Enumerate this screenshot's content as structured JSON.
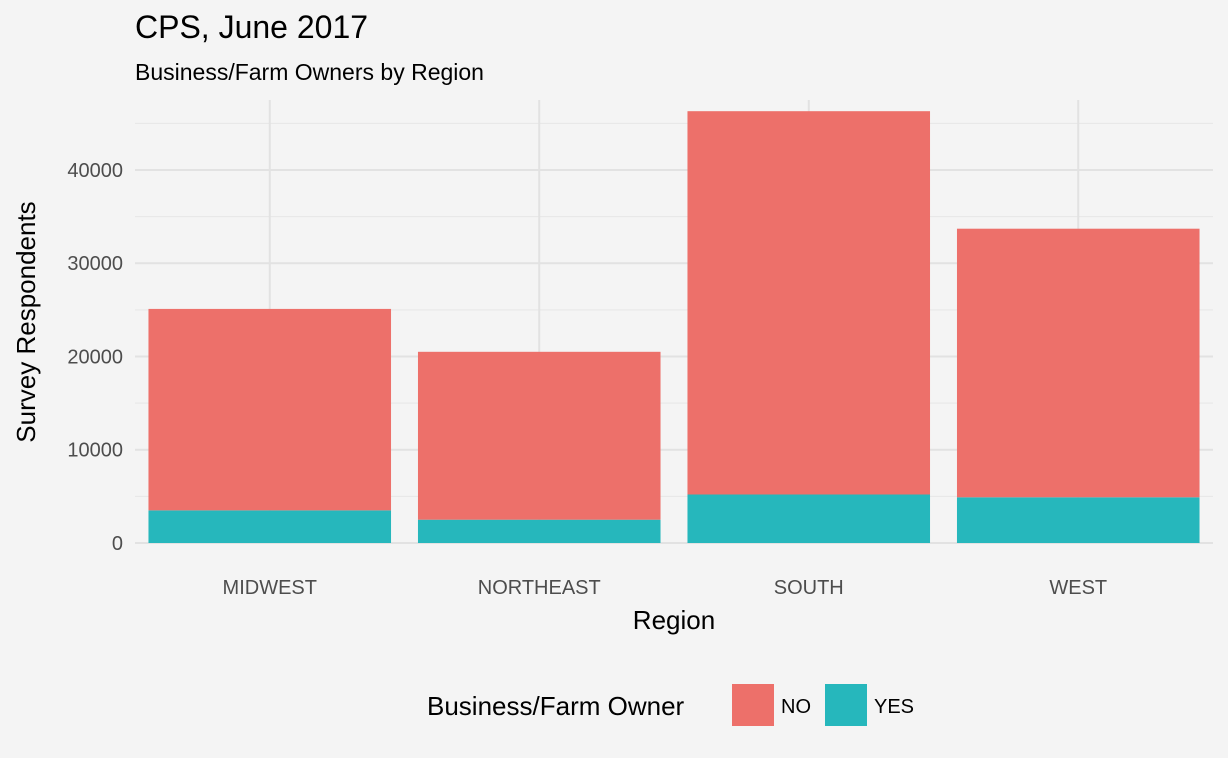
{
  "chart_data": {
    "type": "bar",
    "stacked": true,
    "title": "CPS, June 2017",
    "subtitle": "Business/Farm Owners by Region",
    "xlabel": "Region",
    "ylabel": "Survey Respondents",
    "categories": [
      "MIDWEST",
      "NORTHEAST",
      "SOUTH",
      "WEST"
    ],
    "series": [
      {
        "name": "YES",
        "color": "#26b7bc",
        "values": [
          3500,
          2500,
          5200,
          4900
        ]
      },
      {
        "name": "NO",
        "color": "#ed706a",
        "values": [
          21600,
          18000,
          41100,
          28800
        ]
      }
    ],
    "totals": [
      25100,
      20500,
      46300,
      33700
    ],
    "ylim": [
      0,
      47500
    ],
    "yticks": [
      0,
      10000,
      20000,
      30000,
      40000
    ],
    "ytick_labels": [
      "0",
      "10000",
      "20000",
      "30000",
      "40000"
    ],
    "grid": true,
    "legend": {
      "title": "Business/Farm Owner",
      "position": "bottom",
      "items": [
        "NO",
        "YES"
      ]
    }
  }
}
